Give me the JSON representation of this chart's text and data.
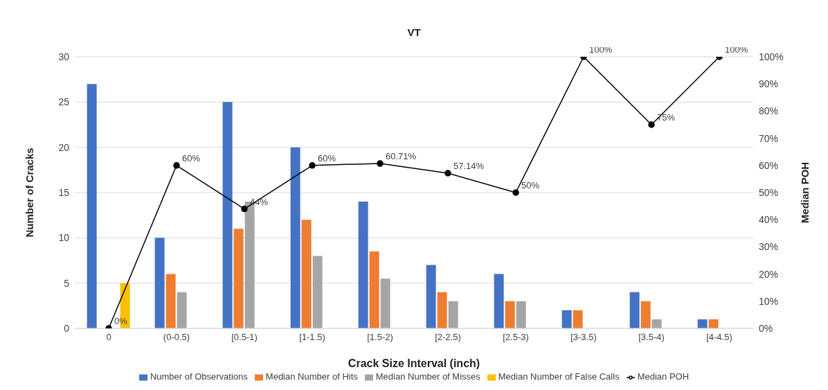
{
  "chart_data": {
    "type": "bar",
    "title": "VT",
    "xlabel": "Crack Size Interval (inch)",
    "ylabel": "Number of Cracks",
    "y2label": "Median POH",
    "categories": [
      "0",
      "(0-0.5)",
      "[0.5-1)",
      "[1-1.5)",
      "[1.5-2)",
      "[2-2.5)",
      "[2.5-3)",
      "[3-3.5)",
      "[3.5-4)",
      "[4-4.5)"
    ],
    "series": [
      {
        "name": "Number of Observations",
        "color": "#4472c4",
        "values": [
          27,
          10,
          25,
          20,
          14,
          7,
          6,
          2,
          4,
          1
        ]
      },
      {
        "name": "Median Number of Hits",
        "color": "#ed7d31",
        "values": [
          0,
          6,
          11,
          12,
          8.5,
          4,
          3,
          2,
          3,
          1
        ]
      },
      {
        "name": "Median Number of Misses",
        "color": "#a5a5a5",
        "values": [
          0,
          4,
          14,
          8,
          5.5,
          3,
          3,
          0,
          1,
          0
        ]
      },
      {
        "name": "Median Number of False Calls",
        "color": "#ffc000",
        "values": [
          5,
          0,
          0,
          0,
          0,
          0,
          0,
          0,
          0,
          0
        ]
      },
      {
        "name": "Median POH",
        "type": "line",
        "axis": "y2",
        "color": "#000000",
        "marker": "circle",
        "line_style": "solid",
        "values": [
          0,
          60,
          44,
          60,
          60.71,
          57.14,
          50,
          100,
          75,
          100
        ],
        "value_labels": [
          "0%",
          "60%",
          "44%",
          "60%",
          "60.71%",
          "57.14%",
          "50%",
          "100%",
          "75%",
          "100%"
        ]
      }
    ],
    "ylim": [
      0,
      30
    ],
    "yticks": [
      0,
      5,
      10,
      15,
      20,
      25,
      30
    ],
    "y2lim": [
      0,
      100
    ],
    "y2ticks": [
      {
        "value": 0,
        "label": "0%"
      },
      {
        "value": 10,
        "label": "10%"
      },
      {
        "value": 20,
        "label": "20%"
      },
      {
        "value": 30,
        "label": "30%"
      },
      {
        "value": 40,
        "label": "40%"
      },
      {
        "value": 50,
        "label": "50%"
      },
      {
        "value": 60,
        "label": "60%"
      },
      {
        "value": 70,
        "label": "70%"
      },
      {
        "value": 80,
        "label": "80%"
      },
      {
        "value": 90,
        "label": "90%"
      },
      {
        "value": 100,
        "label": "100%"
      }
    ],
    "grid": "y",
    "legend": "bottom"
  }
}
